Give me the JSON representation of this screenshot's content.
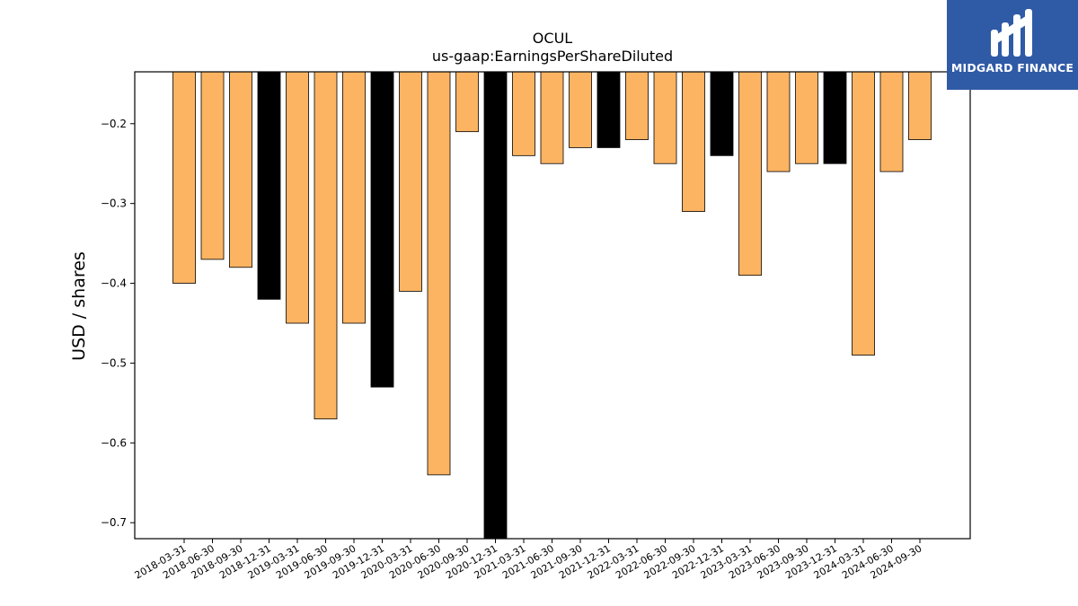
{
  "logo": {
    "name": "MIDGARD FINANCE",
    "icon": "midgard-finance-logo-icon"
  },
  "colors": {
    "bar_default": "#fdb462",
    "bar_annual": "#000000",
    "logo_bg": "#2f5aa6"
  },
  "chart_data": {
    "type": "bar",
    "title": "OCUL",
    "subtitle": "us-gaap:EarningsPerShareDiluted",
    "xlabel": "",
    "ylabel": "USD / shares",
    "ylim": [
      -0.72,
      -0.135
    ],
    "yticks": [
      -0.7,
      -0.6,
      -0.5,
      -0.4,
      -0.3,
      -0.2
    ],
    "ytick_labels": [
      "−0.7",
      "−0.6",
      "−0.5",
      "−0.4",
      "−0.3",
      "−0.2"
    ],
    "grid": false,
    "categories": [
      "2018-03-31",
      "2018-06-30",
      "2018-09-30",
      "2018-12-31",
      "2019-03-31",
      "2019-06-30",
      "2019-09-30",
      "2019-12-31",
      "2020-03-31",
      "2020-06-30",
      "2020-09-30",
      "2020-12-31",
      "2021-03-31",
      "2021-06-30",
      "2021-09-30",
      "2021-12-31",
      "2022-03-31",
      "2022-06-30",
      "2022-09-30",
      "2022-12-31",
      "2023-03-31",
      "2023-06-30",
      "2023-09-30",
      "2023-12-31",
      "2024-03-31",
      "2024-06-30",
      "2024-09-30"
    ],
    "values": [
      -0.4,
      -0.37,
      -0.38,
      -0.42,
      -0.45,
      -0.57,
      -0.45,
      -0.53,
      -0.41,
      -0.64,
      -0.21,
      -0.74,
      -0.24,
      -0.25,
      -0.23,
      -0.23,
      -0.22,
      -0.25,
      -0.31,
      -0.24,
      -0.39,
      -0.26,
      -0.25,
      -0.25,
      -0.49,
      -0.26,
      -0.22
    ],
    "highlight": [
      false,
      false,
      false,
      true,
      false,
      false,
      false,
      true,
      false,
      false,
      false,
      true,
      false,
      false,
      false,
      true,
      false,
      false,
      false,
      true,
      false,
      false,
      false,
      true,
      false,
      false,
      false
    ]
  }
}
